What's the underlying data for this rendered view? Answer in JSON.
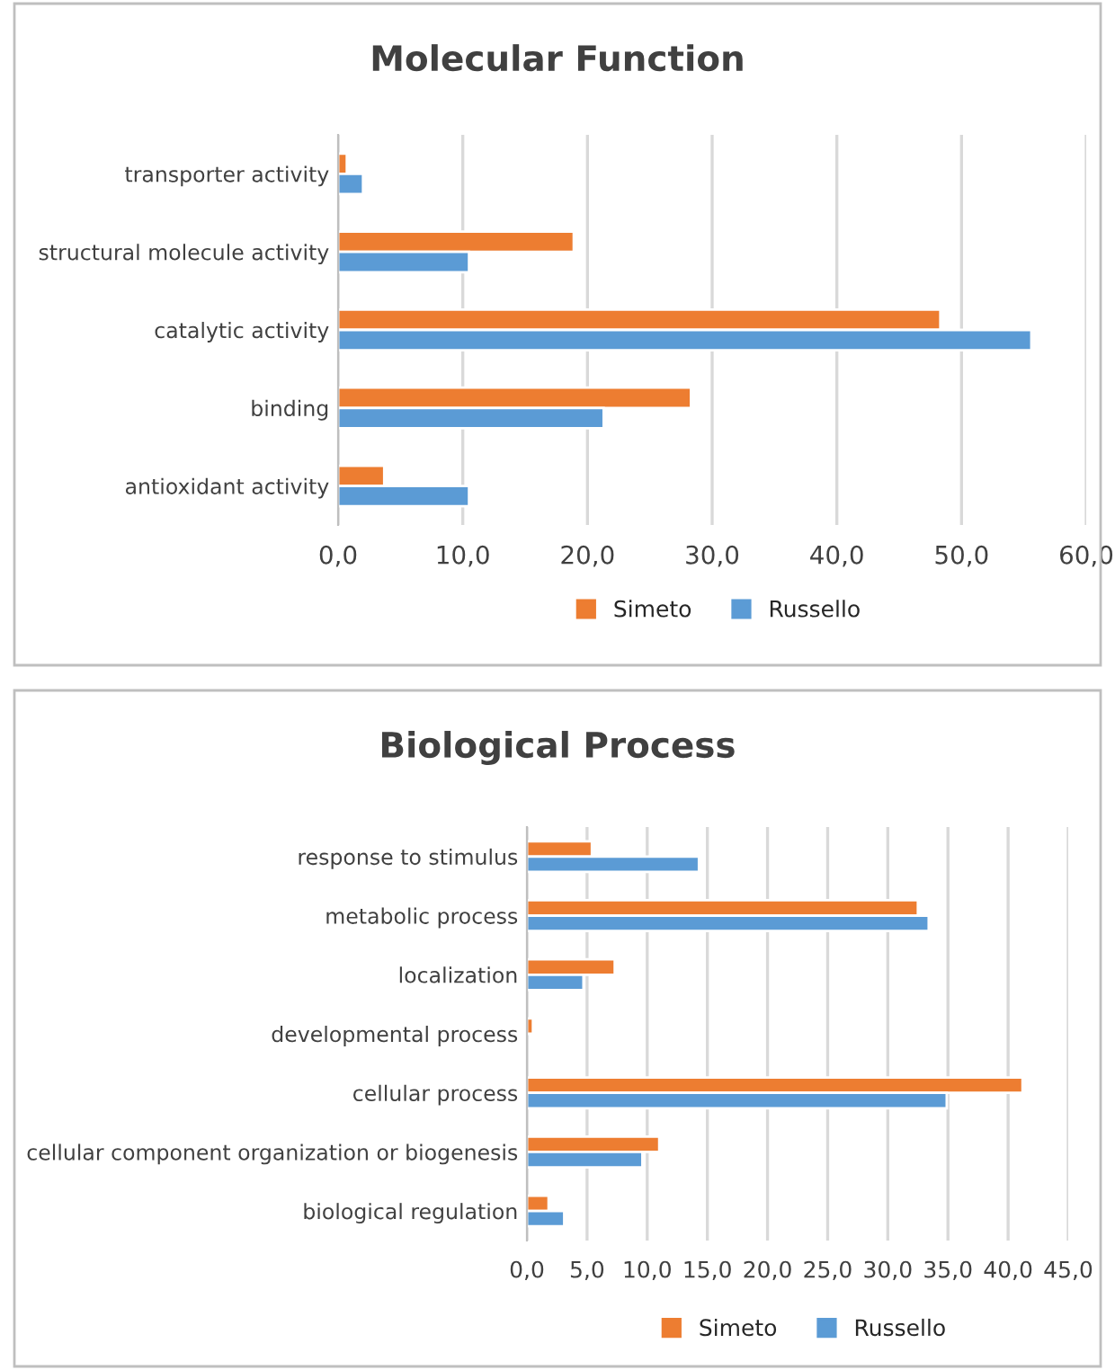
{
  "chart_data": [
    {
      "type": "bar",
      "orientation": "horizontal",
      "title": "Molecular Function",
      "categories": [
        "transporter activity",
        "structural molecule activity",
        "catalytic activity",
        "binding",
        "antioxidant activity"
      ],
      "series": [
        {
          "name": "Simeto",
          "color": "#ed7d31",
          "values": [
            0.7,
            18.9,
            48.3,
            28.3,
            3.7
          ]
        },
        {
          "name": "Russello",
          "color": "#5b9bd5",
          "values": [
            2.0,
            10.5,
            55.6,
            21.3,
            10.5
          ]
        }
      ],
      "xlim": [
        0,
        60
      ],
      "xticks": [
        {
          "value": 0,
          "label": "0,0"
        },
        {
          "value": 10,
          "label": "10,0"
        },
        {
          "value": 20,
          "label": "20,0"
        },
        {
          "value": 30,
          "label": "30,0"
        },
        {
          "value": 40,
          "label": "40,0"
        },
        {
          "value": 50,
          "label": "50,0"
        },
        {
          "value": 60,
          "label": "60,0"
        }
      ],
      "grid": "x",
      "legend": "bottom"
    },
    {
      "type": "bar",
      "orientation": "horizontal",
      "title": "Biological Process",
      "categories": [
        "response to stimulus",
        "metabolic process",
        "localization",
        "developmental process",
        "cellular process",
        "cellular component organization or biogenesis",
        "biological regulation"
      ],
      "series": [
        {
          "name": "Simeto",
          "color": "#ed7d31",
          "values": [
            5.4,
            32.5,
            7.3,
            0.5,
            41.2,
            11.0,
            1.8
          ]
        },
        {
          "name": "Russello",
          "color": "#5b9bd5",
          "values": [
            14.3,
            33.4,
            4.7,
            null,
            34.9,
            9.6,
            3.1
          ]
        }
      ],
      "xlim": [
        0,
        45
      ],
      "xticks": [
        {
          "value": 0,
          "label": "0,0"
        },
        {
          "value": 5,
          "label": "5,0"
        },
        {
          "value": 10,
          "label": "10,0"
        },
        {
          "value": 15,
          "label": "15,0"
        },
        {
          "value": 20,
          "label": "20,0"
        },
        {
          "value": 25,
          "label": "25,0"
        },
        {
          "value": 30,
          "label": "30,0"
        },
        {
          "value": 35,
          "label": "35,0"
        },
        {
          "value": 40,
          "label": "40,0"
        },
        {
          "value": 45,
          "label": "45,0"
        }
      ],
      "grid": "x",
      "legend": "bottom"
    }
  ]
}
